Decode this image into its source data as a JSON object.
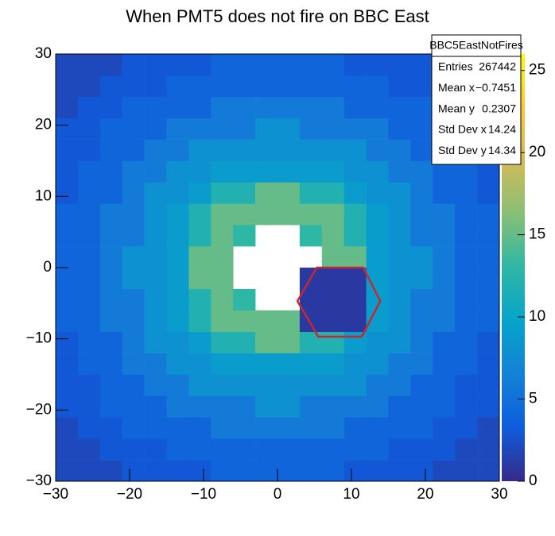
{
  "chart_data": {
    "type": "heatmap",
    "title": "When PMT5 does not fire on BBC East",
    "xbins": [
      -30,
      -27,
      -24,
      -21,
      -18,
      -15,
      -12,
      -9,
      -6,
      -3,
      0,
      3,
      6,
      9,
      12,
      15,
      18,
      21,
      24,
      27,
      30
    ],
    "ybins": [
      -30,
      -27,
      -24,
      -21,
      -18,
      -15,
      -12,
      -9,
      -6,
      -3,
      0,
      3,
      6,
      9,
      12,
      15,
      18,
      21,
      24,
      27,
      30
    ],
    "values": [
      [
        2,
        2,
        2,
        3,
        3,
        3,
        3,
        4,
        4,
        4,
        4,
        4,
        4,
        3,
        3,
        3,
        3,
        2,
        2,
        2
      ],
      [
        2,
        2,
        3,
        3,
        3,
        4,
        4,
        4,
        4,
        4,
        4,
        4,
        4,
        4,
        4,
        3,
        3,
        3,
        2,
        2
      ],
      [
        2,
        3,
        3,
        4,
        4,
        4,
        4,
        6,
        6,
        6,
        6,
        6,
        6,
        4,
        4,
        4,
        4,
        3,
        3,
        2
      ],
      [
        3,
        3,
        4,
        4,
        4,
        6,
        6,
        6,
        6,
        8,
        8,
        6,
        6,
        6,
        6,
        4,
        4,
        4,
        3,
        3
      ],
      [
        3,
        3,
        4,
        4,
        6,
        6,
        8,
        8,
        8,
        8,
        8,
        8,
        8,
        8,
        6,
        6,
        4,
        4,
        3,
        3
      ],
      [
        3,
        4,
        4,
        6,
        6,
        8,
        8,
        9,
        9,
        9,
        9,
        9,
        9,
        8,
        8,
        6,
        6,
        4,
        4,
        3
      ],
      [
        3,
        4,
        4,
        6,
        8,
        8,
        9,
        12,
        12,
        15,
        15,
        12,
        12,
        9,
        8,
        8,
        6,
        4,
        4,
        3
      ],
      [
        4,
        4,
        6,
        6,
        8,
        9,
        12,
        15,
        15,
        15,
        15,
        1,
        1,
        1,
        9,
        8,
        6,
        6,
        4,
        4
      ],
      [
        4,
        4,
        6,
        6,
        8,
        9,
        12,
        15,
        13,
        0,
        0,
        1,
        1,
        1,
        9,
        8,
        6,
        6,
        4,
        4
      ],
      [
        4,
        4,
        6,
        8,
        8,
        9,
        15,
        15,
        0,
        0,
        0,
        1,
        1,
        1,
        9,
        8,
        8,
        6,
        4,
        4
      ],
      [
        4,
        4,
        6,
        8,
        8,
        9,
        15,
        15,
        0,
        0,
        0,
        0,
        15,
        15,
        9,
        8,
        8,
        6,
        4,
        4
      ],
      [
        4,
        4,
        6,
        6,
        8,
        9,
        12,
        15,
        13,
        0,
        0,
        13,
        15,
        12,
        9,
        8,
        6,
        6,
        4,
        4
      ],
      [
        4,
        4,
        6,
        6,
        8,
        9,
        12,
        15,
        15,
        15,
        15,
        15,
        15,
        12,
        9,
        8,
        6,
        6,
        4,
        4
      ],
      [
        3,
        4,
        4,
        6,
        8,
        8,
        9,
        12,
        12,
        15,
        15,
        12,
        12,
        9,
        8,
        8,
        6,
        4,
        4,
        3
      ],
      [
        3,
        4,
        4,
        6,
        6,
        8,
        8,
        9,
        9,
        9,
        9,
        9,
        9,
        8,
        8,
        6,
        6,
        4,
        4,
        3
      ],
      [
        3,
        3,
        4,
        4,
        6,
        6,
        8,
        8,
        8,
        8,
        8,
        8,
        8,
        8,
        6,
        6,
        4,
        4,
        3,
        3
      ],
      [
        3,
        3,
        4,
        4,
        4,
        6,
        6,
        6,
        6,
        8,
        8,
        6,
        6,
        6,
        6,
        4,
        4,
        4,
        3,
        3
      ],
      [
        2,
        3,
        3,
        4,
        4,
        4,
        4,
        6,
        6,
        6,
        6,
        6,
        6,
        4,
        4,
        4,
        4,
        3,
        3,
        2
      ],
      [
        2,
        2,
        3,
        3,
        3,
        4,
        4,
        4,
        4,
        4,
        4,
        4,
        4,
        4,
        4,
        3,
        3,
        3,
        2,
        2
      ],
      [
        2,
        2,
        2,
        3,
        3,
        3,
        3,
        4,
        4,
        4,
        4,
        4,
        4,
        3,
        3,
        3,
        3,
        2,
        2,
        2
      ]
    ],
    "colorscale": [
      "#352a87",
      "#0f5cdd",
      "#1481d6",
      "#06a4ca",
      "#2eb7a4",
      "#87bf77",
      "#d1bb59",
      "#fec832",
      "#f9fb0e"
    ],
    "xlim": [
      -30,
      30
    ],
    "ylim": [
      -30,
      30
    ],
    "zlim": [
      0,
      26
    ],
    "xticks": [
      {
        "value": -30,
        "label": "−30"
      },
      {
        "value": -20,
        "label": "−20"
      },
      {
        "value": -10,
        "label": "−10"
      },
      0,
      10,
      20,
      30
    ],
    "yticks": [
      {
        "value": -30,
        "label": "−30"
      },
      {
        "value": -20,
        "label": "−20"
      },
      {
        "value": -10,
        "label": "−10"
      },
      0,
      10,
      20,
      30
    ],
    "zticks": [
      0,
      5,
      10,
      15,
      20,
      25
    ],
    "hexagon": {
      "x": [
        5.3,
        11.6,
        13.9,
        11.4,
        5.5,
        2.7
      ],
      "y": [
        0,
        0,
        -4.7,
        -9.7,
        -9.7,
        -4.7
      ],
      "color": "#c8282d"
    },
    "stats": {
      "title": "BBC5EastNotFires",
      "names": [
        "Entries",
        "Mean x",
        "Mean y",
        "Std Dev x",
        "Std Dev y"
      ],
      "values": [
        267442,
        -0.7451,
        0.2307,
        14.24,
        14.34
      ],
      "value_labels": [
        "267442",
        "−0.7451",
        "0.2307",
        "14.24",
        "14.34"
      ]
    }
  }
}
